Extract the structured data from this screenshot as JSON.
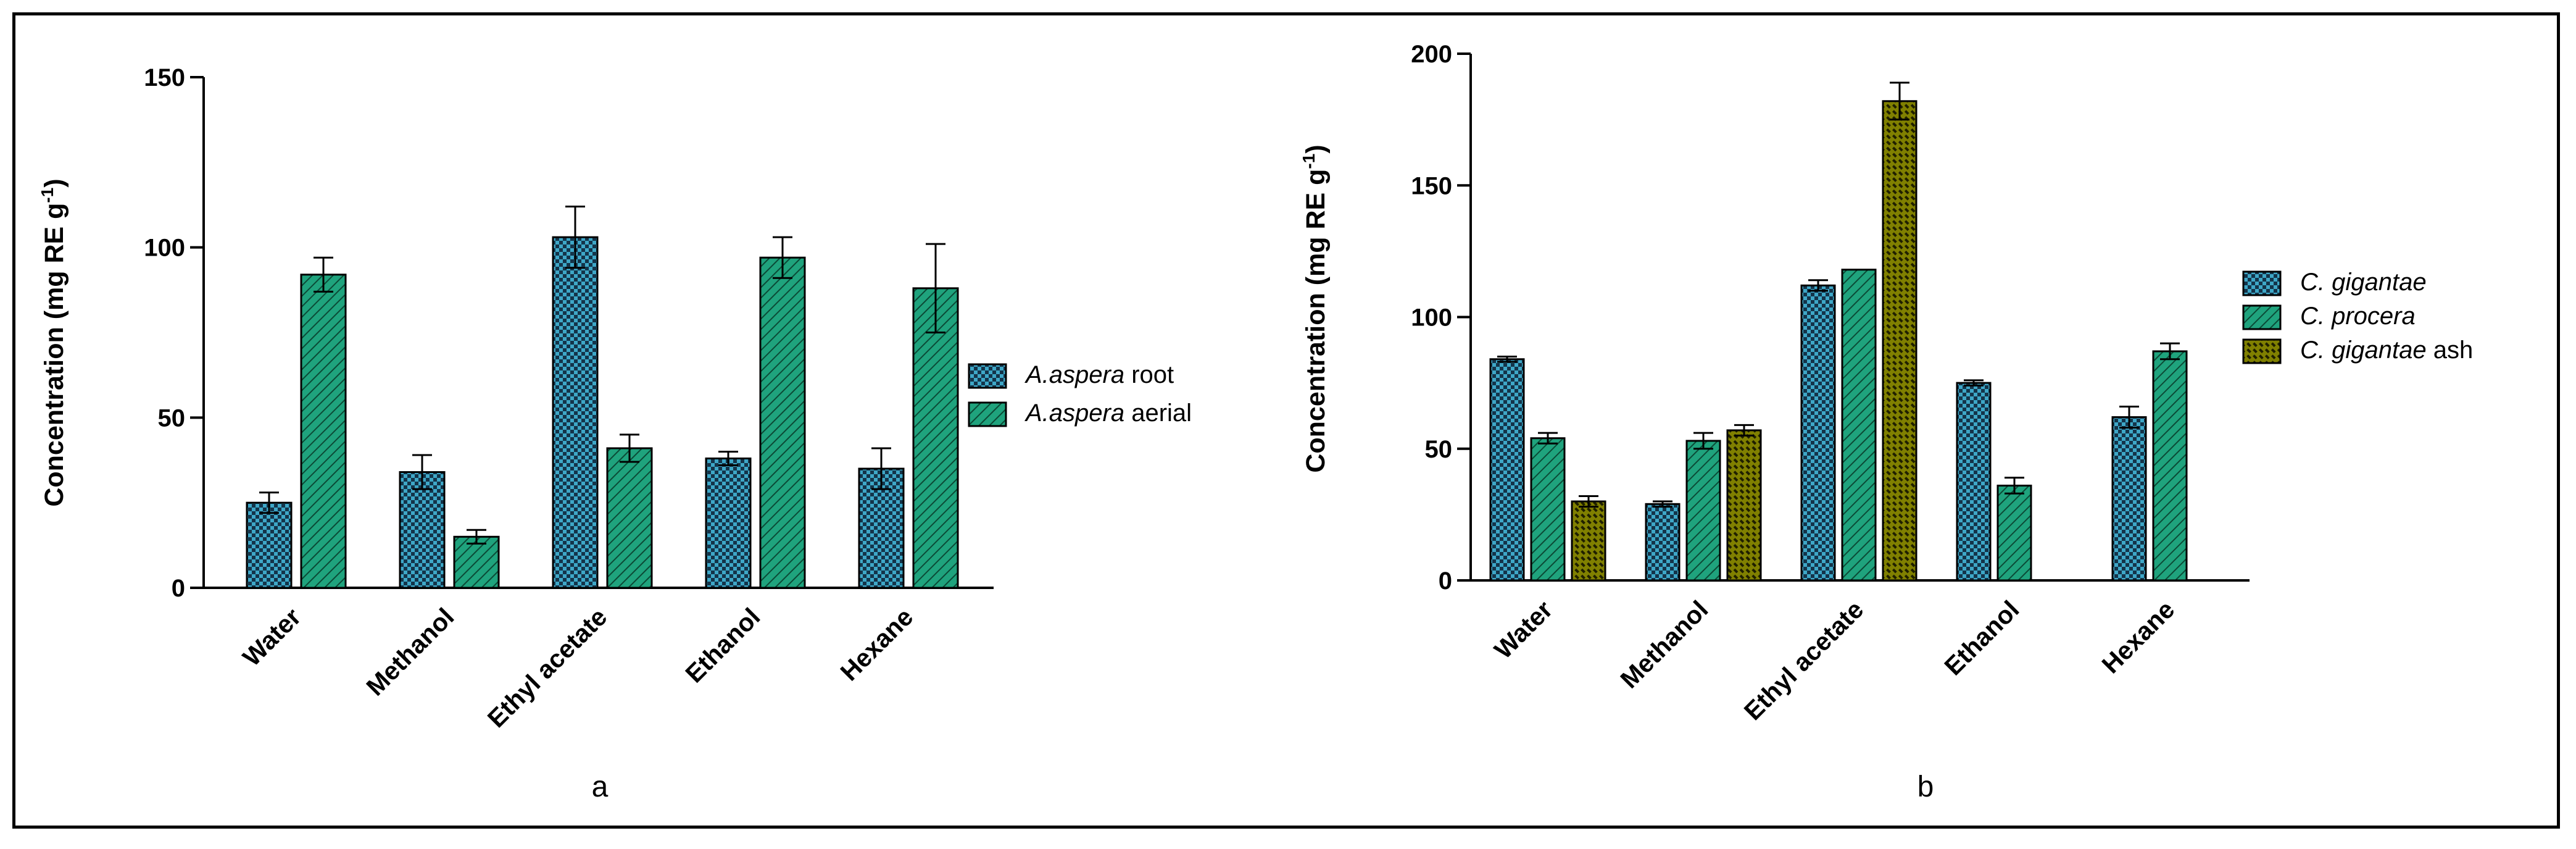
{
  "colors": {
    "blue": "#3ea7c7",
    "green": "#1fa37d",
    "olive": "#808000"
  },
  "chart_data": [
    {
      "type": "bar",
      "panel_label": "a",
      "ylabel": "Concentration (mg RE g",
      "ylabel_sup": "-1",
      "ylabel_close": ")",
      "ylim": [
        0,
        150
      ],
      "yticks": [
        0,
        50,
        100,
        150
      ],
      "categories": [
        "Water",
        "Methanol",
        "Ethyl acetate",
        "Ethanol",
        "Hexane"
      ],
      "series": [
        {
          "name": "A.aspera root",
          "name_italic": "A.aspera",
          "name_rest": " root",
          "pattern": "check",
          "color": "blue",
          "values": [
            25,
            34,
            103,
            38,
            35
          ],
          "errors": [
            3,
            5,
            9,
            2,
            6
          ]
        },
        {
          "name": "A.aspera aerial",
          "name_italic": "A.aspera",
          "name_rest": " aerial",
          "pattern": "hatch",
          "color": "green",
          "values": [
            92,
            15,
            41,
            97,
            88
          ],
          "errors": [
            5,
            2,
            4,
            6,
            13
          ]
        }
      ],
      "legend_position": "right"
    },
    {
      "type": "bar",
      "panel_label": "b",
      "ylabel": "Concentration (mg RE g",
      "ylabel_sup": "-1",
      "ylabel_close": ")",
      "ylim": [
        0,
        200
      ],
      "yticks": [
        0,
        50,
        100,
        150,
        200
      ],
      "categories": [
        "Water",
        "Methanol",
        "Ethyl acetate",
        "Ethanol",
        "Hexane"
      ],
      "series": [
        {
          "name": "C. gigantae",
          "name_italic": "C. gigantae",
          "name_rest": "",
          "pattern": "check",
          "color": "blue",
          "values": [
            84,
            29,
            112,
            75,
            62
          ],
          "errors": [
            1,
            1,
            2,
            1,
            4
          ]
        },
        {
          "name": "C. procera",
          "name_italic": "C. procera",
          "name_rest": "",
          "pattern": "hatch",
          "color": "green",
          "values": [
            54,
            53,
            118,
            36,
            87
          ],
          "errors": [
            2,
            3,
            0,
            3,
            3
          ]
        },
        {
          "name": "C. gigantae ash",
          "name_italic": "C. gigantae",
          "name_rest": " ash",
          "pattern": "dots",
          "color": "olive",
          "values": [
            30,
            57,
            182,
            null,
            null
          ],
          "errors": [
            2,
            2,
            7,
            null,
            null
          ]
        }
      ],
      "legend_position": "right"
    }
  ]
}
